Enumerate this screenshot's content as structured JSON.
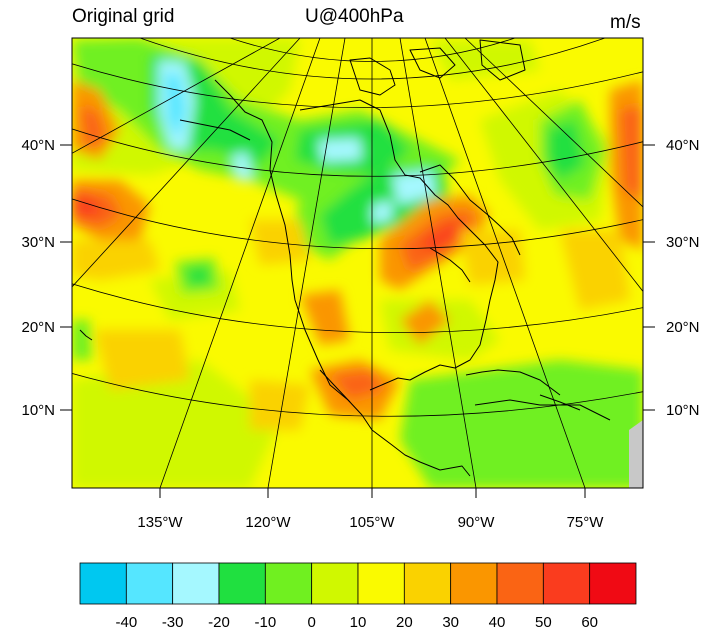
{
  "titles": {
    "left": "Original grid",
    "center": "U@400hPa",
    "units": "m/s"
  },
  "lat_labels": [
    "40°N",
    "30°N",
    "20°N",
    "10°N"
  ],
  "lon_labels": [
    "135°W",
    "120°W",
    "105°W",
    "90°W",
    "75°W"
  ],
  "colorbar": {
    "colors": [
      "#00c8f0",
      "#55e6ff",
      "#a5f8ff",
      "#20e040",
      "#70f020",
      "#d0f800",
      "#fafa00",
      "#fad200",
      "#fa9600",
      "#fa6414",
      "#fa3c1e",
      "#f00a14"
    ],
    "labels": [
      "-40",
      "-30",
      "-20",
      "-10",
      "0",
      "10",
      "20",
      "30",
      "40",
      "50",
      "60"
    ]
  },
  "colors": {
    "background_field": "#fafa00",
    "missing": "#c8c8c8",
    "lines": "#000000"
  }
}
